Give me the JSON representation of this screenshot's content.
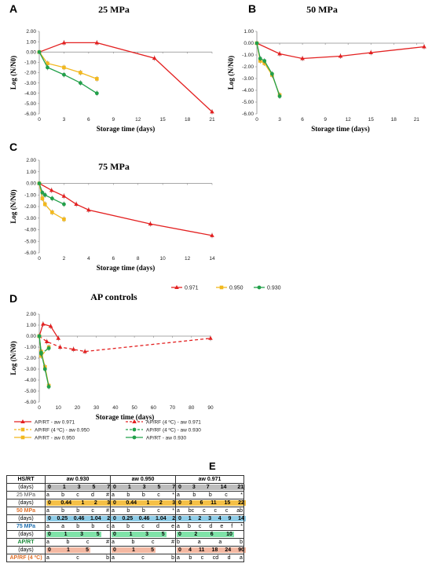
{
  "colors": {
    "aw0971": "#e32020",
    "aw0950": "#f2b81e",
    "aw0930": "#22a04a",
    "row25": "#bdbdbd",
    "row50": "#f5c046",
    "row75": "#8fcde8",
    "rowAP": "#7fe3a8",
    "rowRF": "#f4b8a2"
  },
  "chart_data": [
    {
      "panel": "A",
      "title": "25 MPa",
      "type": "line",
      "xlabel": "Storage time (days)",
      "ylabel": "Log (N/N0)",
      "xlim": [
        0,
        21
      ],
      "ylim": [
        -6,
        2
      ],
      "x_ticks": [
        "0",
        "3",
        "6",
        "9",
        "12",
        "15",
        "18",
        "21"
      ],
      "y_ticks": [
        "2.00",
        "1.00",
        "0.00",
        "-1.00",
        "-2.00",
        "-3.00",
        "-4.00",
        "-5.00",
        "-6.00"
      ],
      "series": [
        {
          "name": "0.971",
          "x": [
            0,
            3,
            7,
            14,
            21
          ],
          "y": [
            0,
            0.9,
            0.9,
            -0.6,
            -5.8
          ]
        },
        {
          "name": "0.950",
          "x": [
            0,
            1,
            3,
            5,
            7
          ],
          "y": [
            0,
            -1.1,
            -1.5,
            -2.0,
            -2.6
          ]
        },
        {
          "name": "0.930",
          "x": [
            0,
            1,
            3,
            5,
            7
          ],
          "y": [
            0,
            -1.5,
            -2.2,
            -3.0,
            -4.0
          ]
        }
      ]
    },
    {
      "panel": "B",
      "title": "50 MPa",
      "type": "line",
      "xlabel": "Storage time (days)",
      "ylabel": "Log (N/N0)",
      "xlim": [
        0,
        22
      ],
      "ylim": [
        -6,
        1
      ],
      "x_ticks": [
        "0",
        "3",
        "6",
        "9",
        "12",
        "15",
        "18",
        "21"
      ],
      "y_ticks": [
        "1.00",
        "0.00",
        "-1.00",
        "-2.00",
        "-3.00",
        "-4.00",
        "-5.00",
        "-6.00"
      ],
      "series": [
        {
          "name": "0.971",
          "x": [
            0,
            3,
            6,
            11,
            15,
            22
          ],
          "y": [
            0,
            -0.9,
            -1.3,
            -1.1,
            -0.8,
            -0.3
          ]
        },
        {
          "name": "0.950",
          "x": [
            0,
            0.44,
            1,
            2,
            3
          ],
          "y": [
            0,
            -1.5,
            -1.7,
            -2.7,
            -4.4
          ]
        },
        {
          "name": "0.930",
          "x": [
            0,
            0.44,
            1,
            2,
            3
          ],
          "y": [
            0,
            -1.3,
            -1.5,
            -2.6,
            -4.5
          ]
        }
      ]
    },
    {
      "panel": "C",
      "title": "75 MPa",
      "type": "line",
      "xlabel": "Storage time (days)",
      "ylabel": "Log (N/N0)",
      "xlim": [
        0,
        14
      ],
      "ylim": [
        -6,
        2
      ],
      "x_ticks": [
        "0",
        "2",
        "4",
        "6",
        "8",
        "10",
        "12",
        "14"
      ],
      "y_ticks": [
        "2.00",
        "1.00",
        "0.00",
        "-1.00",
        "-2.00",
        "-3.00",
        "-4.00",
        "-5.00",
        "-6.00"
      ],
      "series": [
        {
          "name": "0.971",
          "x": [
            0,
            1,
            2,
            3,
            4,
            9,
            14
          ],
          "y": [
            0,
            -0.6,
            -1.1,
            -1.8,
            -2.3,
            -3.5,
            -4.5
          ]
        },
        {
          "name": "0.950",
          "x": [
            0,
            0.25,
            0.46,
            1.04,
            2
          ],
          "y": [
            0,
            -1.3,
            -1.8,
            -2.5,
            -3.1
          ]
        },
        {
          "name": "0.930",
          "x": [
            0,
            0.25,
            0.46,
            1.04,
            2
          ],
          "y": [
            0,
            -0.8,
            -1.0,
            -1.3,
            -1.8
          ]
        }
      ]
    },
    {
      "panel": "D",
      "title": "AP controls",
      "type": "line",
      "xlabel": "Storage time (days)",
      "ylabel": "Log (N/N0)",
      "xlim": [
        0,
        90
      ],
      "ylim": [
        -6,
        2
      ],
      "x_ticks": [
        "0",
        "10",
        "20",
        "30",
        "40",
        "50",
        "60",
        "70",
        "80",
        "90"
      ],
      "y_ticks": [
        "2.00",
        "1.00",
        "0.00",
        "-1.00",
        "-2.00",
        "-3.00",
        "-4.00",
        "-5.00",
        "-6.00"
      ],
      "series": [
        {
          "name": "AP/RT - aw 0.971",
          "x": [
            0,
            2,
            6,
            10
          ],
          "y": [
            0,
            1.1,
            0.9,
            -0.2
          ]
        },
        {
          "name": "AP/RF (4 ºC) - aw 0.971",
          "x": [
            0,
            4,
            11,
            18,
            24,
            90
          ],
          "y": [
            0,
            -0.5,
            -1.0,
            -1.2,
            -1.4,
            -0.2
          ]
        },
        {
          "name": "AP/RF (4 ºC) - aw 0.950",
          "x": [
            0,
            1,
            5
          ],
          "y": [
            0,
            -1.8,
            -1.0
          ]
        },
        {
          "name": "AP/RT - aw 0.950",
          "x": [
            0,
            1,
            3,
            5
          ],
          "y": [
            0,
            -1.4,
            -2.8,
            -4.5
          ]
        },
        {
          "name": "AP/RF (4 ºC) - aw 0.930",
          "x": [
            0,
            1,
            5
          ],
          "y": [
            0,
            -1.6,
            -1.1
          ]
        },
        {
          "name": "AP/RT - aw 0.930",
          "x": [
            0,
            1,
            3,
            5
          ],
          "y": [
            0,
            -1.5,
            -3.0,
            -4.6
          ]
        }
      ]
    }
  ],
  "panels": {
    "A": "A",
    "B": "B",
    "C": "C",
    "D": "D",
    "E": "E"
  },
  "legend_main": [
    "0.971",
    "0.950",
    "0.930"
  ],
  "table": {
    "header": [
      "HS/RT",
      "aw 0.930",
      "aw 0.950",
      "aw 0.971"
    ],
    "rows": [
      {
        "label1": "(days)",
        "label2": "25 MPa",
        "bg": "row25",
        "g930": {
          "days": [
            "0",
            "1",
            "3",
            "5",
            "7"
          ],
          "letters": [
            "a",
            "b",
            "c",
            "d",
            "#"
          ]
        },
        "g950": {
          "days": [
            "0",
            "1",
            "3",
            "5",
            "7"
          ],
          "letters": [
            "a",
            "b",
            "b",
            "c",
            "*"
          ]
        },
        "g971": {
          "days": [
            "0",
            "3",
            "7",
            "14",
            "21"
          ],
          "letters": [
            "a",
            "b",
            "b",
            "c",
            "*"
          ]
        }
      },
      {
        "label1": "(days)",
        "label2": "50 MPa",
        "bg": "row50",
        "g930": {
          "days": [
            "0",
            "0.44",
            "1",
            "2",
            "3"
          ],
          "letters": [
            "a",
            "b",
            "b",
            "c",
            "#"
          ]
        },
        "g950": {
          "days": [
            "0",
            "0.44",
            "1",
            "2",
            "3"
          ],
          "letters": [
            "a",
            "b",
            "b",
            "c",
            "*"
          ]
        },
        "g971": {
          "days": [
            "0",
            "3",
            "6",
            "11",
            "15",
            "22"
          ],
          "letters": [
            "a",
            "bc",
            "c",
            "c",
            "c",
            "ab"
          ]
        }
      },
      {
        "label1": "(days)",
        "label2": "75 MPa",
        "bg": "row75",
        "g930": {
          "days": [
            "0",
            "0.25",
            "0.46",
            "1.04",
            "2"
          ],
          "letters": [
            "a",
            "a",
            "b",
            "b",
            "c"
          ]
        },
        "g950": {
          "days": [
            "0",
            "0.25",
            "0.46",
            "1.04",
            "2"
          ],
          "letters": [
            "a",
            "b",
            "c",
            "d",
            "e"
          ]
        },
        "g971": {
          "days": [
            "0",
            "1",
            "2",
            "3",
            "4",
            "9",
            "14"
          ],
          "letters": [
            "a",
            "b",
            "c",
            "d",
            "e",
            "f",
            "*"
          ]
        }
      },
      {
        "label1": "(days)",
        "label2": "AP/RT",
        "bg": "rowAP",
        "g930": {
          "days": [
            "0",
            "1",
            "3",
            "5"
          ],
          "letters": [
            "a",
            "b",
            "c",
            "#"
          ]
        },
        "g950": {
          "days": [
            "0",
            "1",
            "3",
            "5"
          ],
          "letters": [
            "a",
            "b",
            "c",
            "#"
          ]
        },
        "g971": {
          "days": [
            "0",
            "2",
            "6",
            "10"
          ],
          "letters": [
            "b",
            "a",
            "a",
            "b"
          ]
        }
      },
      {
        "label1": "(days)",
        "label2": "AP/RF (4 ºC)",
        "bg": "rowRF",
        "g930": {
          "days": [
            "0",
            "1",
            "5"
          ],
          "letters": [
            "a",
            "c",
            "b"
          ]
        },
        "g950": {
          "days": [
            "0",
            "1",
            "5"
          ],
          "letters": [
            "a",
            "c",
            "b"
          ]
        },
        "g971": {
          "days": [
            "0",
            "4",
            "11",
            "18",
            "24",
            "90"
          ],
          "letters": [
            "a",
            "b",
            "c",
            "cd",
            "d",
            "a"
          ]
        }
      }
    ]
  }
}
